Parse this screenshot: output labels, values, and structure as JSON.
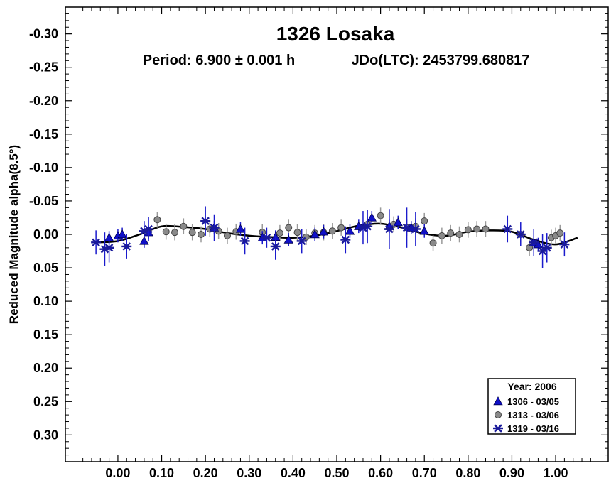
{
  "chart_data": {
    "type": "scatter",
    "title": "1326 Losaka",
    "period_text": "Period: 6.900 ± 0.001 h",
    "epoch_text": "JDo(LTC): 2453799.680817",
    "ylabel": "Reduced Magnitude alpha(8.5°)",
    "xlabel": "",
    "xlim": [
      -0.12,
      1.12
    ],
    "ylim": [
      -0.34,
      0.34
    ],
    "y_inverted": true,
    "x_ticks": [
      "0.00",
      "0.10",
      "0.20",
      "0.30",
      "0.40",
      "0.50",
      "0.60",
      "0.70",
      "0.80",
      "0.90",
      "1.00"
    ],
    "x_tick_values": [
      0,
      0.1,
      0.2,
      0.3,
      0.4,
      0.5,
      0.6,
      0.7,
      0.8,
      0.9,
      1.0
    ],
    "y_ticks": [
      "-0.30",
      "-0.25",
      "-0.20",
      "-0.15",
      "-0.10",
      "-0.05",
      "0.00",
      "0.05",
      "0.10",
      "0.15",
      "0.20",
      "0.25",
      "0.30"
    ],
    "y_tick_values": [
      -0.3,
      -0.25,
      -0.2,
      -0.15,
      -0.1,
      -0.05,
      0.0,
      0.05,
      0.1,
      0.15,
      0.2,
      0.25,
      0.3
    ],
    "legend": {
      "title": "Year: 2006",
      "position": "bottom-right",
      "entries": [
        {
          "label": "1306 - 03/05",
          "marker": "triangle",
          "color": "#1010c8"
        },
        {
          "label": "1313 - 03/06",
          "marker": "circle",
          "color": "#8a8a8a"
        },
        {
          "label": "1319 - 03/16",
          "marker": "asterisk",
          "color": "#1a1a9a"
        }
      ]
    },
    "fit_curve": {
      "x": [
        -0.05,
        0.0,
        0.05,
        0.1,
        0.15,
        0.2,
        0.25,
        0.3,
        0.35,
        0.4,
        0.45,
        0.5,
        0.55,
        0.6,
        0.65,
        0.7,
        0.75,
        0.8,
        0.85,
        0.9,
        0.95,
        1.0,
        1.05
      ],
      "y": [
        0.012,
        0.01,
        0.0,
        -0.012,
        -0.011,
        -0.008,
        -0.002,
        0.002,
        0.004,
        0.005,
        0.002,
        -0.005,
        -0.013,
        -0.016,
        -0.01,
        -0.001,
        0.002,
        -0.004,
        -0.006,
        -0.004,
        0.008,
        0.015,
        0.005
      ]
    },
    "series": [
      {
        "name": "1306 - 03/05",
        "marker": "triangle",
        "color": "#1010c8",
        "x": [
          -0.02,
          0.0,
          0.01,
          0.06,
          0.07,
          0.22,
          0.28,
          0.33,
          0.36,
          0.39,
          0.45,
          0.47,
          0.53,
          0.55,
          0.58,
          0.62,
          0.64,
          0.67,
          0.7,
          0.95,
          0.96
        ],
        "y": [
          0.005,
          0.002,
          0.0,
          0.01,
          -0.003,
          -0.01,
          -0.008,
          0.005,
          0.004,
          0.008,
          0.0,
          -0.004,
          -0.005,
          -0.012,
          -0.025,
          -0.012,
          -0.018,
          -0.01,
          -0.005,
          0.012,
          0.015
        ],
        "err": [
          0.01,
          0.01,
          0.01,
          0.01,
          0.01,
          0.01,
          0.01,
          0.01,
          0.01,
          0.01,
          0.01,
          0.01,
          0.01,
          0.01,
          0.01,
          0.01,
          0.01,
          0.01,
          0.01,
          0.01,
          0.01
        ]
      },
      {
        "name": "1313 - 03/06",
        "marker": "circle",
        "color": "#8a8a8a",
        "x": [
          0.09,
          0.11,
          0.13,
          0.15,
          0.17,
          0.19,
          0.21,
          0.23,
          0.25,
          0.27,
          0.33,
          0.37,
          0.39,
          0.41,
          0.43,
          0.45,
          0.47,
          0.49,
          0.51,
          0.57,
          0.6,
          0.63,
          0.66,
          0.68,
          0.7,
          0.72,
          0.74,
          0.76,
          0.78,
          0.8,
          0.82,
          0.84,
          0.92,
          0.94,
          0.99,
          1.0,
          1.01
        ],
        "y": [
          -0.022,
          -0.004,
          -0.003,
          -0.012,
          -0.003,
          0.0,
          -0.008,
          -0.005,
          0.002,
          -0.004,
          -0.003,
          -0.002,
          -0.01,
          -0.003,
          0.004,
          -0.002,
          -0.003,
          -0.005,
          -0.01,
          -0.015,
          -0.028,
          -0.015,
          -0.01,
          -0.012,
          -0.02,
          0.013,
          0.002,
          -0.002,
          0.0,
          -0.007,
          -0.008,
          -0.008,
          0.0,
          0.02,
          0.005,
          0.002,
          -0.002
        ],
        "err": [
          0.012,
          0.012,
          0.012,
          0.012,
          0.012,
          0.012,
          0.012,
          0.012,
          0.012,
          0.012,
          0.012,
          0.012,
          0.012,
          0.012,
          0.012,
          0.012,
          0.012,
          0.012,
          0.012,
          0.012,
          0.012,
          0.012,
          0.012,
          0.012,
          0.012,
          0.012,
          0.012,
          0.012,
          0.012,
          0.012,
          0.012,
          0.012,
          0.012,
          0.012,
          0.012,
          0.012,
          0.012
        ]
      },
      {
        "name": "1319 - 03/16",
        "marker": "asterisk",
        "color": "#1a1a9a",
        "x": [
          -0.05,
          -0.03,
          -0.02,
          0.02,
          0.06,
          0.07,
          0.2,
          0.22,
          0.29,
          0.34,
          0.36,
          0.42,
          0.52,
          0.56,
          0.57,
          0.62,
          0.66,
          0.68,
          0.89,
          0.92,
          0.95,
          0.97,
          0.98,
          1.02
        ],
        "y": [
          0.012,
          0.022,
          0.02,
          0.018,
          -0.005,
          -0.008,
          -0.02,
          -0.01,
          0.01,
          0.005,
          0.018,
          0.01,
          0.008,
          -0.01,
          -0.012,
          -0.008,
          -0.01,
          -0.008,
          -0.008,
          0.0,
          0.012,
          0.025,
          0.02,
          0.015
        ],
        "err": [
          0.018,
          0.025,
          0.022,
          0.018,
          0.015,
          0.018,
          0.022,
          0.02,
          0.02,
          0.015,
          0.02,
          0.018,
          0.02,
          0.025,
          0.025,
          0.03,
          0.03,
          0.025,
          0.02,
          0.018,
          0.02,
          0.025,
          0.022,
          0.018
        ]
      }
    ]
  }
}
